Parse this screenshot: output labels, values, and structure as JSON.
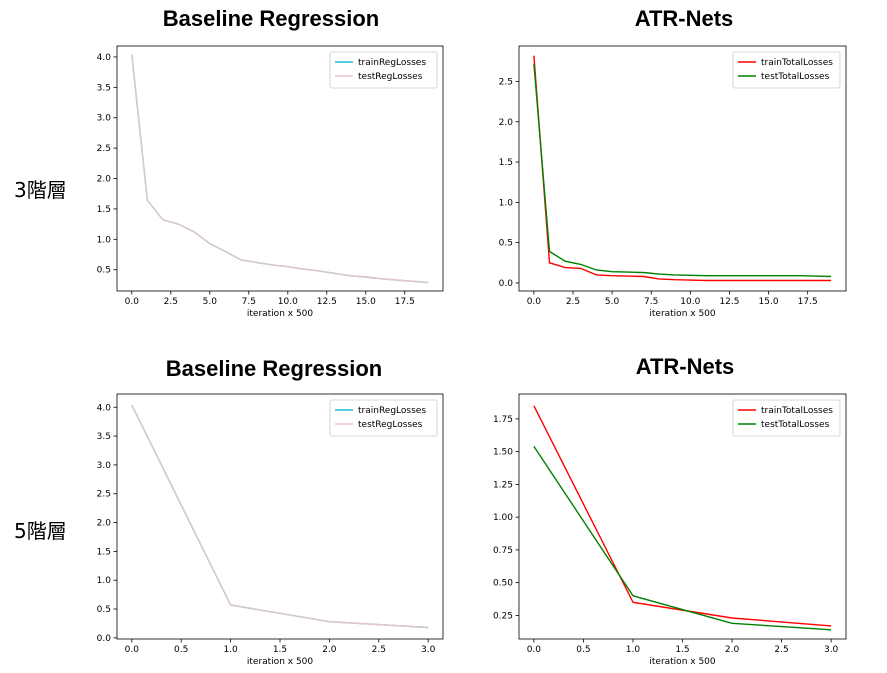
{
  "row_labels": [
    "3階層",
    "5階層"
  ],
  "chart_data": [
    {
      "type": "line",
      "title": "Baseline Regression",
      "xlabel": "iteration x 500",
      "ylabel": "",
      "xlim": [
        -0.95,
        19.95
      ],
      "ylim": [
        0.15,
        4.18
      ],
      "xticks": [
        0.0,
        2.5,
        5.0,
        7.5,
        10.0,
        12.5,
        15.0,
        17.5
      ],
      "xtick_labels": [
        "0.0",
        "2.5",
        "5.0",
        "7.5",
        "10.0",
        "12.5",
        "15.0",
        "17.5"
      ],
      "yticks": [
        0.5,
        1.0,
        1.5,
        2.0,
        2.5,
        3.0,
        3.5,
        4.0
      ],
      "ytick_labels": [
        "0.5",
        "1.0",
        "1.5",
        "2.0",
        "2.5",
        "3.0",
        "3.5",
        "4.0"
      ],
      "legend_position": "top-right",
      "x": [
        0,
        1,
        2,
        3,
        4,
        5,
        6,
        7,
        8,
        9,
        10,
        11,
        12,
        13,
        14,
        15,
        16,
        17,
        18,
        19
      ],
      "series": [
        {
          "name": "trainRegLosses",
          "color": "#17becf",
          "values": [
            4.04,
            1.64,
            1.32,
            1.25,
            1.12,
            0.93,
            0.8,
            0.66,
            0.62,
            0.58,
            0.55,
            0.51,
            0.48,
            0.44,
            0.4,
            0.38,
            0.35,
            0.33,
            0.31,
            0.29
          ]
        },
        {
          "name": "testRegLosses",
          "color": "#e8c3c9",
          "values": [
            4.04,
            1.64,
            1.32,
            1.25,
            1.12,
            0.93,
            0.8,
            0.66,
            0.62,
            0.58,
            0.55,
            0.51,
            0.48,
            0.44,
            0.4,
            0.38,
            0.35,
            0.33,
            0.31,
            0.29
          ]
        }
      ]
    },
    {
      "type": "line",
      "title": "ATR-Nets",
      "xlabel": "iteration x 500",
      "ylabel": "",
      "xlim": [
        -0.95,
        19.95
      ],
      "ylim": [
        -0.1,
        2.94
      ],
      "xticks": [
        0.0,
        2.5,
        5.0,
        7.5,
        10.0,
        12.5,
        15.0,
        17.5
      ],
      "xtick_labels": [
        "0.0",
        "2.5",
        "5.0",
        "7.5",
        "10.0",
        "12.5",
        "15.0",
        "17.5"
      ],
      "yticks": [
        0.0,
        0.5,
        1.0,
        1.5,
        2.0,
        2.5
      ],
      "ytick_labels": [
        "0.0",
        "0.5",
        "1.0",
        "1.5",
        "2.0",
        "2.5"
      ],
      "legend_position": "top-right",
      "x": [
        0,
        1,
        2,
        3,
        4,
        5,
        6,
        7,
        8,
        9,
        10,
        11,
        12,
        13,
        14,
        15,
        16,
        17,
        18,
        19
      ],
      "series": [
        {
          "name": "trainTotalLosses",
          "color": "#ff0000",
          "values": [
            2.82,
            0.25,
            0.19,
            0.18,
            0.1,
            0.09,
            0.085,
            0.08,
            0.05,
            0.04,
            0.035,
            0.03,
            0.03,
            0.03,
            0.03,
            0.03,
            0.03,
            0.03,
            0.03,
            0.03
          ]
        },
        {
          "name": "testTotalLosses",
          "color": "#008000",
          "values": [
            2.72,
            0.39,
            0.27,
            0.23,
            0.16,
            0.14,
            0.135,
            0.13,
            0.11,
            0.1,
            0.095,
            0.09,
            0.09,
            0.09,
            0.09,
            0.09,
            0.09,
            0.09,
            0.085,
            0.08
          ]
        }
      ]
    },
    {
      "type": "line",
      "title": "Baseline Regression",
      "xlabel": "iteration x 500",
      "ylabel": "",
      "xlim": [
        -0.15,
        3.15
      ],
      "ylim": [
        -0.02,
        4.23
      ],
      "xticks": [
        0.0,
        0.5,
        1.0,
        1.5,
        2.0,
        2.5,
        3.0
      ],
      "xtick_labels": [
        "0.0",
        "0.5",
        "1.0",
        "1.5",
        "2.0",
        "2.5",
        "3.0"
      ],
      "yticks": [
        0.0,
        0.5,
        1.0,
        1.5,
        2.0,
        2.5,
        3.0,
        3.5,
        4.0
      ],
      "ytick_labels": [
        "0.0",
        "0.5",
        "1.0",
        "1.5",
        "2.0",
        "2.5",
        "3.0",
        "3.5",
        "4.0"
      ],
      "legend_position": "top-right",
      "x": [
        0,
        1,
        2,
        3
      ],
      "series": [
        {
          "name": "trainRegLosses",
          "color": "#17becf",
          "values": [
            4.04,
            0.57,
            0.28,
            0.18
          ]
        },
        {
          "name": "testRegLosses",
          "color": "#e8c3c9",
          "values": [
            4.04,
            0.57,
            0.28,
            0.18
          ]
        }
      ]
    },
    {
      "type": "line",
      "title": "ATR-Nets",
      "xlabel": "iteration x 500",
      "ylabel": "",
      "xlim": [
        -0.15,
        3.15
      ],
      "ylim": [
        0.07,
        1.94
      ],
      "xticks": [
        0.0,
        0.5,
        1.0,
        1.5,
        2.0,
        2.5,
        3.0
      ],
      "xtick_labels": [
        "0.0",
        "0.5",
        "1.0",
        "1.5",
        "2.0",
        "2.5",
        "3.0"
      ],
      "yticks": [
        0.25,
        0.5,
        0.75,
        1.0,
        1.25,
        1.5,
        1.75
      ],
      "ytick_labels": [
        "0.25",
        "0.50",
        "0.75",
        "1.00",
        "1.25",
        "1.50",
        "1.75"
      ],
      "legend_position": "top-right",
      "x": [
        0,
        1,
        2,
        3
      ],
      "series": [
        {
          "name": "trainTotalLosses",
          "color": "#ff0000",
          "values": [
            1.85,
            0.35,
            0.23,
            0.17
          ]
        },
        {
          "name": "testTotalLosses",
          "color": "#008000",
          "values": [
            1.54,
            0.4,
            0.19,
            0.14
          ]
        }
      ]
    }
  ]
}
